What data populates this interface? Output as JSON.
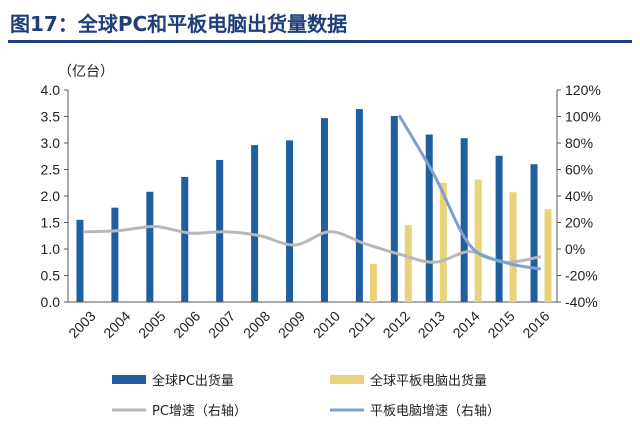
{
  "header": {
    "title": "图17：全球PC和平板电脑出货量数据"
  },
  "chart_data": {
    "type": "bar",
    "categories": [
      "2003",
      "2004",
      "2005",
      "2006",
      "2007",
      "2008",
      "2009",
      "2010",
      "2011",
      "2012",
      "2013",
      "2014",
      "2015",
      "2016"
    ],
    "unit_label": "（亿台）",
    "y_left": {
      "ylim": [
        0,
        4.0
      ],
      "ticks": [
        "0.0",
        "0.5",
        "1.0",
        "1.5",
        "2.0",
        "2.5",
        "3.0",
        "3.5",
        "4.0"
      ]
    },
    "y_right": {
      "ylim": [
        -40,
        120
      ],
      "ticks": [
        "-40%",
        "-20%",
        "0%",
        "20%",
        "40%",
        "60%",
        "80%",
        "100%",
        "120%"
      ]
    },
    "series": [
      {
        "name": "全球PC出货量",
        "type": "bar",
        "axis": "left",
        "color": "#1f5fa0",
        "values": [
          1.55,
          1.78,
          2.08,
          2.36,
          2.68,
          2.96,
          3.05,
          3.47,
          3.64,
          3.51,
          3.16,
          3.09,
          2.76,
          2.6
        ]
      },
      {
        "name": "全球平板电脑出货量",
        "type": "bar",
        "axis": "left",
        "color": "#e8d27a",
        "values": [
          null,
          null,
          null,
          null,
          null,
          null,
          null,
          null,
          0.72,
          1.45,
          2.25,
          2.31,
          2.07,
          1.75
        ]
      },
      {
        "name": "PC增速（右轴）",
        "type": "line",
        "axis": "right",
        "color": "#b8b8b8",
        "values": [
          13,
          14,
          17,
          12,
          13,
          10,
          3,
          13,
          4,
          -4,
          -10,
          -2,
          -10,
          -6
        ]
      },
      {
        "name": "平板电脑增速（右轴）",
        "type": "line",
        "axis": "right",
        "color": "#7f9fd0",
        "values": [
          null,
          null,
          null,
          null,
          null,
          null,
          null,
          null,
          null,
          100,
          55,
          3,
          -10,
          -15
        ]
      }
    ],
    "legend": "bottom"
  }
}
